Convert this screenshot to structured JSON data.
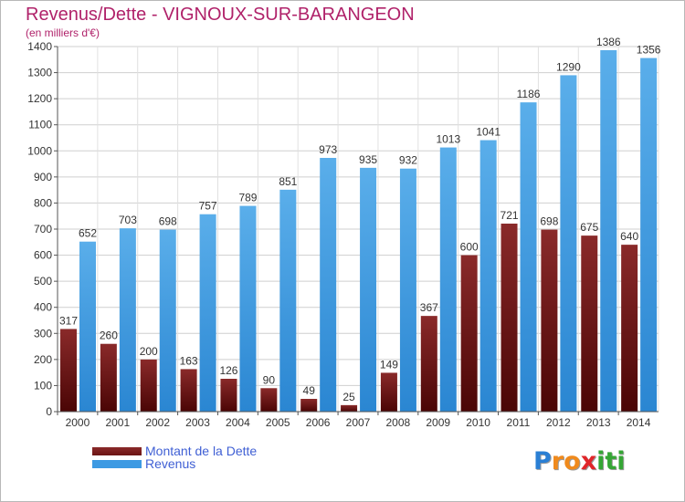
{
  "chart_data": {
    "type": "bar",
    "title": "Revenus/Dette - VIGNOUX-SUR-BARANGEON",
    "subtitle": "(en milliers d'€)",
    "categories": [
      "2000",
      "2001",
      "2002",
      "2003",
      "2004",
      "2005",
      "2006",
      "2007",
      "2008",
      "2009",
      "2010",
      "2011",
      "2012",
      "2013",
      "2014"
    ],
    "series": [
      {
        "name": "Montant de la Dette",
        "color": "#7a1a1a",
        "values": [
          317,
          260,
          200,
          163,
          126,
          90,
          49,
          25,
          149,
          367,
          600,
          721,
          698,
          675,
          640
        ]
      },
      {
        "name": "Revenus",
        "color": "#3d9ae3",
        "values": [
          652,
          703,
          698,
          757,
          789,
          851,
          973,
          935,
          932,
          1013,
          1041,
          1186,
          1290,
          1386,
          1356
        ]
      }
    ],
    "ylim": [
      0,
      1400
    ],
    "yticks": [
      0,
      100,
      200,
      300,
      400,
      500,
      600,
      700,
      800,
      900,
      1000,
      1100,
      1200,
      1300,
      1400
    ],
    "grid": true,
    "legend_position": "bottom-left"
  },
  "legend": {
    "items": [
      {
        "label": "Montant de la Dette",
        "color": "#6b1414"
      },
      {
        "label": "Revenus",
        "color": "#3d9ae3"
      }
    ]
  },
  "logo": {
    "letters": [
      "P",
      "r",
      "o",
      "x",
      "i",
      "t",
      "i"
    ],
    "colors": [
      "#2a7fd4",
      "#f08a1c",
      "#f08a1c",
      "#e0262a",
      "#35a635",
      "#35a635",
      "#35a635"
    ]
  }
}
